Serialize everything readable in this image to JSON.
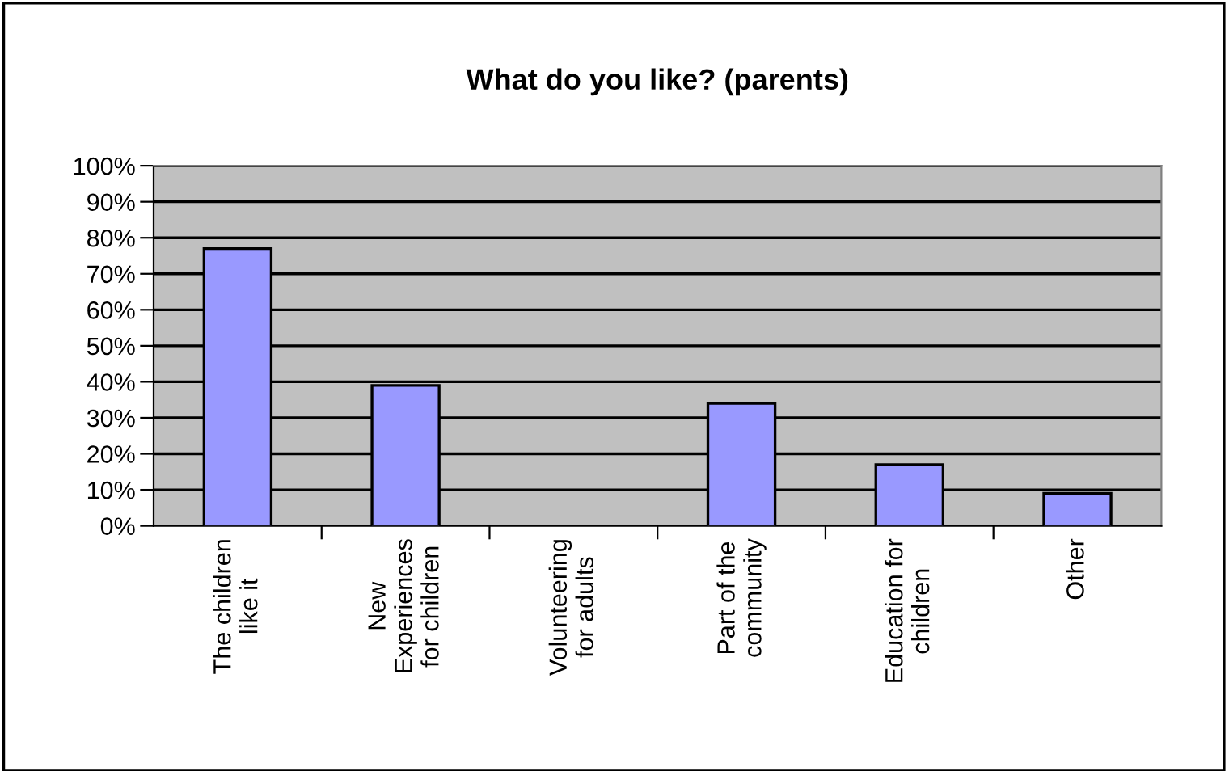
{
  "chart_data": {
    "type": "bar",
    "title": "What do you like? (parents)",
    "categories": [
      "The children\nlike it",
      "New\nExperiences\nfor children",
      "Volunteering\nfor adults",
      "Part of the\ncommunity",
      "Education for\nchildren",
      "Other"
    ],
    "series": [
      {
        "color": "#9999ff",
        "values": [
          77,
          39,
          0,
          34,
          17,
          9
        ]
      }
    ],
    "ylim": [
      0,
      100
    ],
    "yticks": [
      {
        "value": 0,
        "label": "0%"
      },
      {
        "value": 10,
        "label": "10%"
      },
      {
        "value": 20,
        "label": "20%"
      },
      {
        "value": 30,
        "label": "30%"
      },
      {
        "value": 40,
        "label": "40%"
      },
      {
        "value": 50,
        "label": "50%"
      },
      {
        "value": 60,
        "label": "60%"
      },
      {
        "value": 70,
        "label": "70%"
      },
      {
        "value": 80,
        "label": "80%"
      },
      {
        "value": 90,
        "label": "90%"
      },
      {
        "value": 100,
        "label": "100%"
      }
    ],
    "grid": "y",
    "legend": false
  }
}
